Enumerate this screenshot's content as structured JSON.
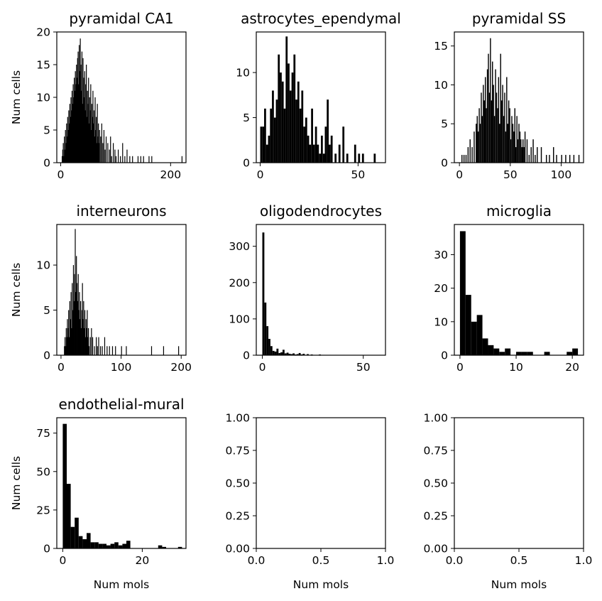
{
  "chart_data": [
    {
      "type": "bar",
      "title": "pyramidal CA1",
      "ylabel": "Num cells",
      "xlabel": "",
      "xlim": [
        -7,
        228
      ],
      "ylim": [
        0,
        20
      ],
      "xticks": [
        0,
        200
      ],
      "yticks": [
        0,
        5,
        10,
        15,
        20
      ],
      "bin_width": 1,
      "x": [
        2,
        3,
        4,
        5,
        6,
        7,
        8,
        9,
        10,
        11,
        12,
        13,
        14,
        15,
        16,
        17,
        18,
        19,
        20,
        21,
        22,
        23,
        24,
        25,
        26,
        27,
        28,
        29,
        30,
        31,
        32,
        33,
        34,
        35,
        36,
        37,
        38,
        39,
        40,
        41,
        42,
        43,
        44,
        45,
        46,
        47,
        48,
        49,
        50,
        51,
        52,
        53,
        54,
        55,
        56,
        57,
        58,
        59,
        60,
        61,
        62,
        63,
        64,
        65,
        66,
        67,
        68,
        69,
        70,
        72,
        74,
        76,
        78,
        80,
        82,
        85,
        88,
        90,
        92,
        95,
        98,
        100,
        104,
        108,
        112,
        116,
        120,
        125,
        130,
        140,
        145,
        150,
        160,
        165,
        220
      ],
      "values": [
        1,
        2,
        3,
        1,
        4,
        2,
        5,
        3,
        6,
        4,
        7,
        5,
        8,
        6,
        9,
        7,
        10,
        8,
        11,
        9,
        12,
        10,
        13,
        11,
        14,
        12,
        15,
        13,
        16,
        17,
        12,
        18,
        14,
        19,
        15,
        11,
        17,
        9,
        16,
        13,
        10,
        14,
        8,
        12,
        15,
        7,
        11,
        9,
        13,
        6,
        10,
        8,
        12,
        5,
        9,
        7,
        11,
        6,
        8,
        4,
        10,
        5,
        7,
        3,
        9,
        4,
        6,
        3,
        5,
        4,
        6,
        3,
        5,
        2,
        4,
        3,
        2,
        4,
        1,
        3,
        2,
        1,
        2,
        1,
        3,
        1,
        2,
        1,
        1,
        1,
        1,
        1,
        1,
        1,
        1
      ]
    },
    {
      "type": "bar",
      "title": "astrocytes_ependymal",
      "ylabel": "",
      "xlabel": "",
      "xlim": [
        -2,
        64
      ],
      "ylim": [
        0,
        14.5
      ],
      "xticks": [
        0,
        50
      ],
      "yticks": [
        0,
        5,
        10
      ],
      "bin_width": 1,
      "x": [
        0,
        1,
        2,
        3,
        4,
        5,
        6,
        7,
        8,
        9,
        10,
        11,
        12,
        13,
        14,
        15,
        16,
        17,
        18,
        19,
        20,
        21,
        22,
        23,
        24,
        25,
        26,
        27,
        28,
        29,
        30,
        31,
        32,
        33,
        34,
        35,
        36,
        38,
        40,
        42,
        44,
        48,
        50,
        52,
        58
      ],
      "values": [
        4,
        4,
        6,
        2,
        3,
        6,
        8,
        5,
        7,
        12,
        10,
        9,
        6,
        14,
        11,
        8,
        10,
        12,
        7,
        9,
        6,
        8,
        4,
        5,
        3,
        2,
        6,
        2,
        4,
        2,
        1,
        3,
        1,
        4,
        7,
        2,
        3,
        1,
        2,
        4,
        1,
        2,
        1,
        1,
        1
      ]
    },
    {
      "type": "bar",
      "title": "pyramidal SS",
      "ylabel": "",
      "xlabel": "",
      "xlim": [
        -5,
        122
      ],
      "ylim": [
        0,
        16.8
      ],
      "xticks": [
        0,
        50,
        100
      ],
      "yticks": [
        0,
        5,
        10,
        15
      ],
      "bin_width": 1,
      "x": [
        2,
        4,
        6,
        8,
        10,
        12,
        14,
        16,
        17,
        18,
        19,
        20,
        21,
        22,
        23,
        24,
        25,
        26,
        27,
        28,
        29,
        30,
        31,
        32,
        33,
        34,
        35,
        36,
        37,
        38,
        39,
        40,
        41,
        42,
        43,
        44,
        45,
        46,
        47,
        48,
        49,
        50,
        51,
        52,
        53,
        54,
        55,
        56,
        57,
        58,
        59,
        60,
        61,
        62,
        63,
        64,
        66,
        68,
        70,
        72,
        74,
        76,
        80,
        85,
        88,
        92,
        95,
        100,
        104,
        108,
        112,
        117
      ],
      "values": [
        1,
        1,
        1,
        2,
        3,
        2,
        4,
        5,
        6,
        4,
        7,
        5,
        9,
        6,
        10,
        8,
        11,
        7,
        12,
        14,
        9,
        16,
        8,
        13,
        10,
        6,
        12,
        9,
        7,
        11,
        5,
        14,
        8,
        10,
        6,
        9,
        4,
        11,
        5,
        8,
        7,
        3,
        6,
        5,
        4,
        7,
        2,
        6,
        3,
        5,
        4,
        3,
        2,
        3,
        2,
        4,
        3,
        1,
        2,
        3,
        1,
        2,
        2,
        1,
        1,
        2,
        1,
        1,
        1,
        1,
        1,
        1
      ]
    },
    {
      "type": "bar",
      "title": "interneurons",
      "ylabel": "Num cells",
      "xlabel": "",
      "xlim": [
        -7,
        208
      ],
      "ylim": [
        0,
        14.5
      ],
      "xticks": [
        0,
        100,
        200
      ],
      "yticks": [
        0,
        5,
        10
      ],
      "bin_width": 1,
      "x": [
        5,
        6,
        7,
        8,
        9,
        10,
        11,
        12,
        13,
        14,
        15,
        16,
        17,
        18,
        19,
        20,
        21,
        22,
        23,
        24,
        25,
        26,
        27,
        28,
        29,
        30,
        31,
        32,
        33,
        34,
        35,
        36,
        37,
        38,
        39,
        40,
        41,
        42,
        43,
        44,
        45,
        46,
        48,
        50,
        52,
        55,
        58,
        60,
        62,
        65,
        68,
        72,
        76,
        80,
        85,
        90,
        100,
        108,
        150,
        170,
        195
      ],
      "values": [
        1,
        2,
        1,
        3,
        2,
        4,
        3,
        5,
        2,
        6,
        4,
        7,
        3,
        8,
        5,
        10,
        6,
        9,
        14,
        7,
        11,
        8,
        6,
        9,
        5,
        7,
        4,
        6,
        3,
        5,
        8,
        4,
        6,
        3,
        5,
        2,
        4,
        3,
        5,
        2,
        3,
        1,
        2,
        3,
        2,
        1,
        2,
        1,
        2,
        1,
        1,
        2,
        1,
        1,
        1,
        1,
        1,
        1,
        1,
        1,
        1
      ]
    },
    {
      "type": "bar",
      "title": "oligodendrocytes",
      "ylabel": "",
      "xlabel": "",
      "xlim": [
        -3,
        61
      ],
      "ylim": [
        0,
        360
      ],
      "xticks": [
        0,
        50
      ],
      "yticks": [
        0,
        100,
        200,
        300
      ],
      "bin_width": 1,
      "x": [
        0,
        1,
        2,
        3,
        4,
        5,
        6,
        7,
        8,
        9,
        10,
        11,
        12,
        13,
        14,
        15,
        16,
        17,
        18,
        19,
        20,
        22,
        24,
        26,
        28,
        30,
        33,
        36,
        40,
        45,
        52,
        58
      ],
      "values": [
        338,
        145,
        80,
        45,
        25,
        12,
        10,
        18,
        6,
        8,
        15,
        5,
        7,
        4,
        3,
        5,
        2,
        3,
        6,
        2,
        4,
        3,
        2,
        1,
        2,
        1,
        1,
        1,
        1,
        1,
        1,
        1
      ]
    },
    {
      "type": "bar",
      "title": "microglia",
      "ylabel": "",
      "xlabel": "",
      "xlim": [
        -1,
        22
      ],
      "ylim": [
        0,
        39
      ],
      "xticks": [
        0,
        10,
        20
      ],
      "yticks": [
        0,
        10,
        20,
        30
      ],
      "bin_width": 1,
      "x": [
        0,
        1,
        2,
        3,
        4,
        5,
        6,
        7,
        8,
        9,
        10,
        11,
        12,
        13,
        14,
        15,
        16,
        17,
        18,
        19,
        20
      ],
      "values": [
        37,
        18,
        10,
        12,
        5,
        3,
        2,
        1,
        2,
        0,
        1,
        1,
        1,
        0,
        0,
        1,
        0,
        0,
        0,
        1,
        2
      ]
    },
    {
      "type": "bar",
      "title": "endothelial-mural",
      "ylabel": "Num cells",
      "xlabel": "Num mols",
      "xlim": [
        -1.5,
        31
      ],
      "ylim": [
        0,
        85
      ],
      "xticks": [
        0,
        20
      ],
      "yticks": [
        0,
        25,
        50,
        75
      ],
      "bin_width": 1,
      "x": [
        0,
        1,
        2,
        3,
        4,
        5,
        6,
        7,
        8,
        9,
        10,
        11,
        12,
        13,
        14,
        15,
        16,
        17,
        18,
        19,
        20,
        21,
        22,
        23,
        24,
        25,
        26,
        27,
        28,
        29
      ],
      "values": [
        81,
        42,
        14,
        20,
        8,
        6,
        10,
        4,
        4,
        3,
        3,
        2,
        3,
        4,
        2,
        3,
        5,
        0,
        0,
        0,
        0,
        0,
        0,
        0,
        2,
        1,
        0,
        0,
        0,
        1
      ]
    },
    {
      "type": "bar",
      "title": "",
      "ylabel": "",
      "xlabel": "Num mols",
      "xlim": [
        0,
        1
      ],
      "ylim": [
        0,
        1
      ],
      "xticks": [
        0.0,
        0.5,
        1.0
      ],
      "yticks": [
        0.0,
        0.25,
        0.5,
        0.75,
        1.0
      ],
      "xtick_labels": [
        "0.0",
        "0.5",
        "1.0"
      ],
      "ytick_labels": [
        "0.00",
        "0.25",
        "0.50",
        "0.75",
        "1.00"
      ],
      "bin_width": 1,
      "x": [],
      "values": []
    },
    {
      "type": "bar",
      "title": "",
      "ylabel": "",
      "xlabel": "Num mols",
      "xlim": [
        0,
        1
      ],
      "ylim": [
        0,
        1
      ],
      "xticks": [
        0.0,
        0.5,
        1.0
      ],
      "yticks": [
        0.0,
        0.25,
        0.5,
        0.75,
        1.0
      ],
      "xtick_labels": [
        "0.0",
        "0.5",
        "1.0"
      ],
      "ytick_labels": [
        "0.00",
        "0.25",
        "0.50",
        "0.75",
        "1.00"
      ],
      "bin_width": 1,
      "x": [],
      "values": []
    }
  ]
}
